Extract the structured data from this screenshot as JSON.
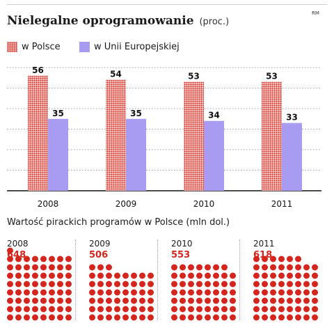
{
  "header": {
    "title": "Nielegalne oprogramowanie",
    "unit": "(proc.)",
    "credit": "RM"
  },
  "legend": [
    {
      "label": "w Polsce",
      "color": "#d5261e"
    },
    {
      "label": "w Unii Europejskiej",
      "color": "#a89cf2"
    }
  ],
  "chart_data": [
    {
      "type": "bar",
      "title": "Nielegalne oprogramowanie",
      "ylabel": "proc.",
      "categories": [
        "2008",
        "2009",
        "2010",
        "2011"
      ],
      "series": [
        {
          "name": "w Polsce",
          "values": [
            56,
            54,
            53,
            53
          ]
        },
        {
          "name": "w Unii Europejskiej",
          "values": [
            35,
            35,
            34,
            33
          ]
        }
      ],
      "ylim": [
        0,
        60
      ],
      "grid": true,
      "legend_position": "top-left"
    },
    {
      "type": "bar",
      "title": "Wartość pirackich programów w Polsce (mln dol.)",
      "categories": [
        "2008",
        "2009",
        "2010",
        "2011"
      ],
      "values": [
        648,
        506,
        553,
        618
      ]
    }
  ],
  "colors": {
    "poland": "#d5261e",
    "eu": "#a89cf2",
    "grid": "#999999"
  }
}
